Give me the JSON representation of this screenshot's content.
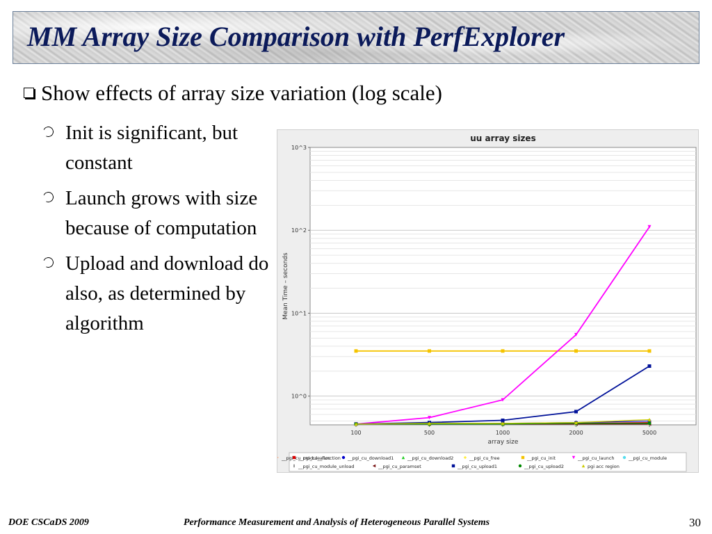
{
  "slide": {
    "title": "MM Array Size Comparison with PerfExplorer",
    "bullet": "Show effects of array size variation (log scale)",
    "subbullets": [
      "Init is significant, but constant",
      "Launch grows with size because of computation",
      "Upload and download do also, as determined by algorithm"
    ],
    "footer_left": "DOE CSCaDS 2009",
    "footer_center": "Performance Measurement and Analysis of Heterogeneous Parallel Systems",
    "page_number": "30"
  },
  "chart_data": {
    "type": "line",
    "title": "uu array sizes",
    "xlabel": "array size",
    "ylabel": "Mean Time – seconds",
    "y_scale": "log",
    "ylim": [
      0.45,
      1000
    ],
    "grid": true,
    "legend_position": "bottom",
    "x": [
      "100",
      "500",
      "1000",
      "2000",
      "5000"
    ],
    "y_ticks": [
      {
        "value": 1,
        "label": "10^0"
      },
      {
        "value": 10,
        "label": "10^1"
      },
      {
        "value": 100,
        "label": "10^2"
      },
      {
        "value": 1000,
        "label": "10^3"
      }
    ],
    "series": [
      {
        "name": "__pgi_cu_alloc",
        "color": "#dd0000",
        "marker": "square",
        "values": [
          0.46,
          0.46,
          0.46,
          0.47,
          0.48
        ]
      },
      {
        "name": "__pgi_cu_download1",
        "color": "#0000cc",
        "marker": "circle",
        "values": [
          0.46,
          0.46,
          0.47,
          0.48,
          0.5
        ]
      },
      {
        "name": "__pgi_cu_download2",
        "color": "#22cc22",
        "marker": "triangle-up",
        "values": [
          0.46,
          0.46,
          0.46,
          0.46,
          0.47
        ]
      },
      {
        "name": "__pgi_cu_free",
        "color": "#ffee44",
        "marker": "diamond",
        "values": [
          0.46,
          0.46,
          0.46,
          0.46,
          0.46
        ]
      },
      {
        "name": "__pgi_cu_init",
        "color": "#f5c400",
        "marker": "square",
        "values": [
          3.5,
          3.5,
          3.5,
          3.5,
          3.5
        ]
      },
      {
        "name": "__pgi_cu_launch",
        "color": "#ff00ff",
        "marker": "triangle-down",
        "values": [
          0.46,
          0.55,
          0.9,
          5.5,
          110
        ]
      },
      {
        "name": "__pgi_cu_module",
        "color": "#55ddee",
        "marker": "circle",
        "values": [
          0.46,
          0.46,
          0.46,
          0.46,
          0.46
        ]
      },
      {
        "name": "__pgi_cu_module_function",
        "color": "#ffbb99",
        "marker": "triangle-right",
        "values": [
          0.46,
          0.46,
          0.46,
          0.46,
          0.46
        ]
      },
      {
        "name": "__pgi_cu_module_unload",
        "color": "#999999",
        "marker": "bar",
        "values": [
          0.46,
          0.46,
          0.46,
          0.46,
          0.46
        ]
      },
      {
        "name": "__pgi_cu_paramset",
        "color": "#771111",
        "marker": "triangle-left",
        "values": [
          0.46,
          0.46,
          0.46,
          0.46,
          0.46
        ]
      },
      {
        "name": "__pgi_cu_upload1",
        "color": "#001199",
        "marker": "square",
        "values": [
          0.46,
          0.48,
          0.51,
          0.65,
          2.3
        ]
      },
      {
        "name": "__pgi_cu_upload2",
        "color": "#008800",
        "marker": "circle",
        "values": [
          0.46,
          0.46,
          0.46,
          0.47,
          0.47
        ]
      },
      {
        "name": "pgi acc region",
        "color": "#cccc00",
        "marker": "triangle-up",
        "values": [
          0.46,
          0.47,
          0.47,
          0.48,
          0.52
        ]
      }
    ]
  }
}
